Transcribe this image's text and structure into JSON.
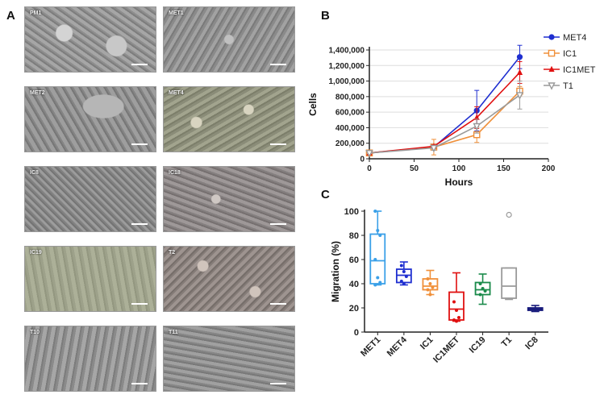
{
  "figure": {
    "panel_a_letter": "A",
    "panel_b_letter": "B",
    "panel_c_letter": "C",
    "micrographs": [
      {
        "label": "PM1"
      },
      {
        "label": "MET1"
      },
      {
        "label": "MET2"
      },
      {
        "label": "MET4"
      },
      {
        "label": "IC8"
      },
      {
        "label": "IC18"
      },
      {
        "label": "IC19"
      },
      {
        "label": "T2"
      },
      {
        "label": "T10"
      },
      {
        "label": "T11"
      }
    ]
  },
  "chart_data": [
    {
      "type": "line",
      "panel": "B",
      "title": "",
      "xlabel": "Hours",
      "ylabel": "Cells",
      "xlim": [
        0,
        200
      ],
      "ylim": [
        0,
        1400000
      ],
      "xticks": [
        "0",
        "50",
        "100",
        "150",
        "200"
      ],
      "yticks": [
        "0",
        "200,000",
        "400,000",
        "600,000",
        "800,000",
        "1,000,000",
        "1,200,000",
        "1,400,000"
      ],
      "legend": "top-right",
      "series": [
        {
          "name": "MET4",
          "color": "#1f2fd0",
          "marker": "circle",
          "x": [
            0,
            72,
            120,
            168
          ],
          "y": [
            75000,
            150000,
            620000,
            1310000
          ],
          "err": [
            0,
            20000,
            260000,
            150000
          ]
        },
        {
          "name": "IC1",
          "color": "#f0903a",
          "marker": "square-open",
          "x": [
            0,
            72,
            120,
            168
          ],
          "y": [
            75000,
            150000,
            310000,
            870000
          ],
          "err": [
            0,
            100000,
            100000,
            60000
          ]
        },
        {
          "name": "IC1MET",
          "color": "#e01010",
          "marker": "triangle",
          "x": [
            0,
            72,
            120,
            168
          ],
          "y": [
            75000,
            160000,
            530000,
            1110000
          ],
          "err": [
            0,
            20000,
            140000,
            140000
          ]
        },
        {
          "name": "T1",
          "color": "#9a9a9a",
          "marker": "triangle-down-open",
          "x": [
            0,
            72,
            120,
            168
          ],
          "y": [
            75000,
            140000,
            420000,
            820000
          ],
          "err": [
            0,
            30000,
            90000,
            180000
          ]
        }
      ]
    },
    {
      "type": "box",
      "panel": "C",
      "title": "",
      "xlabel": "",
      "ylabel": "Migration (%)",
      "ylim": [
        0,
        100
      ],
      "yticks": [
        "0",
        "20",
        "40",
        "60",
        "80",
        "100"
      ],
      "categories": [
        "MET1",
        "MET4",
        "IC1",
        "IC1MET",
        "IC19",
        "T1",
        "IC8"
      ],
      "boxes": [
        {
          "name": "MET1",
          "color": "#3aa0e8",
          "min": 39,
          "q1": 40,
          "median": 59,
          "q3": 81,
          "max": 100,
          "points": [
            100,
            84,
            80,
            60,
            45,
            41,
            39
          ]
        },
        {
          "name": "MET4",
          "color": "#1f2fd0",
          "min": 39,
          "q1": 41,
          "median": 47,
          "q3": 52,
          "max": 58,
          "points": [
            55,
            50,
            46,
            42,
            40
          ]
        },
        {
          "name": "IC1",
          "color": "#f0903a",
          "min": 31,
          "q1": 35,
          "median": 38,
          "q3": 44,
          "max": 51,
          "points": [
            44,
            40,
            37,
            35,
            31
          ]
        },
        {
          "name": "IC1MET",
          "color": "#e01010",
          "min": 9,
          "q1": 10,
          "median": 19,
          "q3": 33,
          "max": 49,
          "points": [
            25,
            18,
            12,
            10,
            9
          ]
        },
        {
          "name": "IC19",
          "color": "#1a8a4a",
          "min": 23,
          "q1": 31,
          "median": 35,
          "q3": 41,
          "max": 48,
          "points": [
            40,
            36,
            34,
            31
          ]
        },
        {
          "name": "T1",
          "color": "#9a9a9a",
          "min": 27,
          "q1": 28,
          "median": 38,
          "q3": 53,
          "max": 53,
          "points": [],
          "outliers": [
            97
          ]
        },
        {
          "name": "IC8",
          "color": "#15187a",
          "min": 17,
          "q1": 18,
          "median": 19,
          "q3": 20,
          "max": 22,
          "points": []
        }
      ]
    }
  ]
}
